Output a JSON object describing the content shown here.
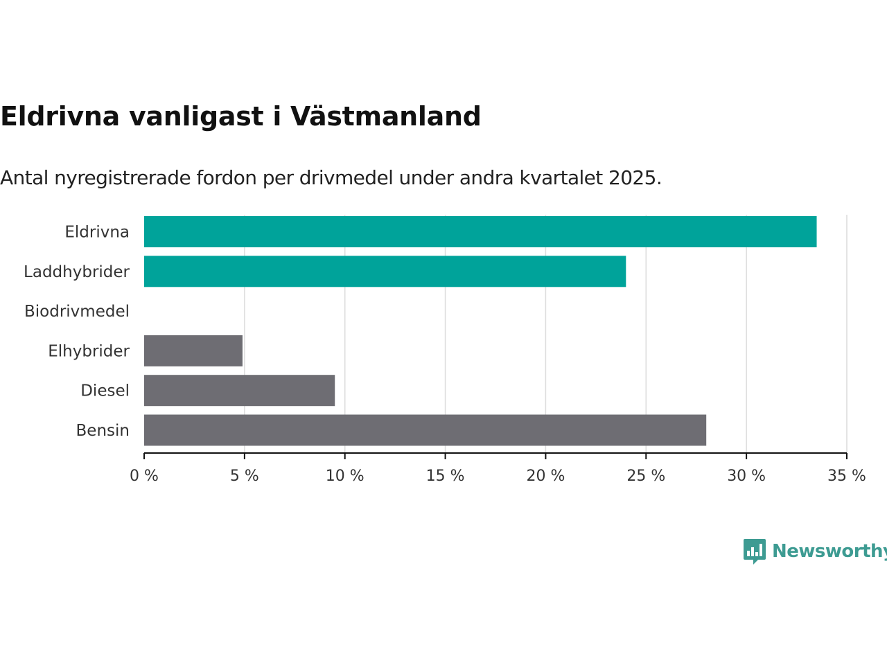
{
  "chart_data": {
    "type": "bar",
    "orientation": "horizontal",
    "title": "Eldrivna vanligast i Västmanland",
    "subtitle": "Antal nyregistrerade fordon per drivmedel under andra kvartalet 2025.",
    "categories": [
      "Eldrivna",
      "Laddhybrider",
      "Biodrivmedel",
      "Elhybrider",
      "Diesel",
      "Bensin"
    ],
    "values": [
      33.5,
      24.0,
      0,
      4.9,
      9.5,
      28.0
    ],
    "bar_colors": [
      "#00a39a",
      "#00a39a",
      "#00a39a",
      "#6e6d73",
      "#6e6d73",
      "#6e6d73"
    ],
    "x_ticks": [
      0,
      5,
      10,
      15,
      20,
      25,
      30,
      35
    ],
    "x_tick_labels": [
      "0 %",
      "5 %",
      "10 %",
      "15 %",
      "20 %",
      "25 %",
      "30 %",
      "35 %"
    ],
    "xlim": [
      0,
      35
    ],
    "grid": true
  },
  "logo": {
    "text": "Newsworthy",
    "icon": "newsworthy-bar-chart-icon",
    "color": "#3d9b92"
  }
}
